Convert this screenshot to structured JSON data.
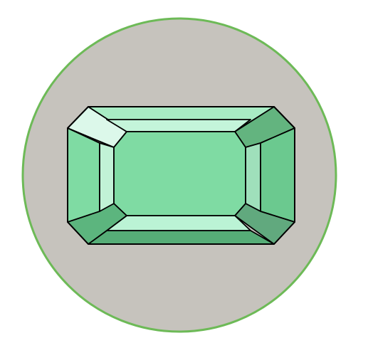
{
  "illustration": {
    "icon": "emerald-cut-gem-icon",
    "colors": {
      "page_background": "#ffffff",
      "badge_fill": "#c6c3bd",
      "badge_border": "#6dba57",
      "outline": "#000000",
      "table_face": "#7fdba3",
      "top_left_corner": "#dcf8ea",
      "top_bevel": "#a8ecc4",
      "top_step": "#c4f5da",
      "top_right_corner": "#63b47f",
      "right_outer": "#6bc98f",
      "right_inner": "#9fe0bb",
      "bottom_right_corner": "#61a97e",
      "bottom_outer": "#56ad77",
      "bottom_inner": "#bbf3d5",
      "bottom_left_corner": "#5cb57e",
      "left_outer": "#7fdba3",
      "left_inner": "#c1f2d6"
    }
  }
}
